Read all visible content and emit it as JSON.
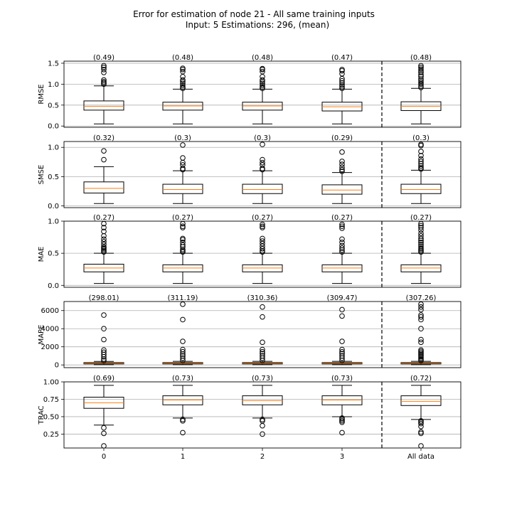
{
  "title": {
    "line1": "Error for estimation of node 21 - All same training inputs",
    "line2": "Input: 5   Estimations: 296,  (mean)"
  },
  "chart_data": {
    "type": "boxplot",
    "categories": [
      "0",
      "1",
      "2",
      "3",
      "All data"
    ],
    "separator_after_category": "3",
    "grid": "horizontal",
    "colors": {
      "box": "#000000",
      "median": "#ff7f0e",
      "grid": "#b0b0b0",
      "separator": "#000000"
    },
    "panels": [
      {
        "ylabel": "RMSE",
        "ylim": [
          -0.03,
          1.55
        ],
        "yticks": [
          0.0,
          0.5,
          1.0,
          1.5
        ],
        "yticklabels": [
          "0.0",
          "0.5",
          "1.0",
          "1.5"
        ],
        "mean_labels": [
          "(0.49)",
          "(0.48)",
          "(0.48)",
          "(0.47)",
          "(0.48)"
        ],
        "boxes": [
          {
            "whislo": 0.05,
            "q1": 0.38,
            "med": 0.47,
            "q3": 0.6,
            "whishi": 0.96,
            "fliers": [
              1.0,
              1.03,
              1.06,
              1.1,
              1.28,
              1.35,
              1.4,
              1.44
            ]
          },
          {
            "whislo": 0.05,
            "q1": 0.38,
            "med": 0.48,
            "q3": 0.57,
            "whishi": 0.88,
            "fliers": [
              0.9,
              0.93,
              0.97,
              1.02,
              1.06,
              1.1,
              1.18,
              1.3,
              1.35,
              1.38
            ]
          },
          {
            "whislo": 0.05,
            "q1": 0.38,
            "med": 0.48,
            "q3": 0.57,
            "whishi": 0.88,
            "fliers": [
              0.9,
              0.93,
              0.97,
              1.02,
              1.06,
              1.1,
              1.18,
              1.3,
              1.35,
              1.37
            ]
          },
          {
            "whislo": 0.05,
            "q1": 0.36,
            "med": 0.46,
            "q3": 0.57,
            "whishi": 0.88,
            "fliers": [
              0.9,
              0.94,
              0.98,
              1.03,
              1.08,
              1.13,
              1.25,
              1.32,
              1.35
            ]
          },
          {
            "whislo": 0.05,
            "q1": 0.37,
            "med": 0.47,
            "q3": 0.58,
            "whishi": 0.9,
            "fliers": [
              0.92,
              0.96,
              1.0,
              1.04,
              1.08,
              1.12,
              1.18,
              1.22,
              1.28,
              1.32,
              1.36,
              1.4,
              1.44
            ]
          }
        ]
      },
      {
        "ylabel": "SMSE",
        "ylim": [
          -0.03,
          1.1
        ],
        "yticks": [
          0.0,
          0.5,
          1.0
        ],
        "yticklabels": [
          "0.0",
          "0.5",
          "1.0"
        ],
        "mean_labels": [
          "(0.32)",
          "(0.3)",
          "(0.3)",
          "(0.29)",
          "(0.3)"
        ],
        "boxes": [
          {
            "whislo": 0.04,
            "q1": 0.22,
            "med": 0.3,
            "q3": 0.41,
            "whishi": 0.67,
            "fliers": [
              0.79,
              0.94
            ]
          },
          {
            "whislo": 0.04,
            "q1": 0.21,
            "med": 0.28,
            "q3": 0.37,
            "whishi": 0.6,
            "fliers": [
              0.62,
              0.64,
              0.7,
              0.74,
              0.82,
              1.04
            ]
          },
          {
            "whislo": 0.04,
            "q1": 0.21,
            "med": 0.28,
            "q3": 0.37,
            "whishi": 0.6,
            "fliers": [
              0.62,
              0.64,
              0.7,
              0.74,
              0.79,
              1.05
            ]
          },
          {
            "whislo": 0.04,
            "q1": 0.2,
            "med": 0.27,
            "q3": 0.36,
            "whishi": 0.57,
            "fliers": [
              0.59,
              0.62,
              0.66,
              0.71,
              0.76,
              0.92
            ]
          },
          {
            "whislo": 0.04,
            "q1": 0.21,
            "med": 0.28,
            "q3": 0.37,
            "whishi": 0.61,
            "fliers": [
              0.63,
              0.65,
              0.68,
              0.72,
              0.76,
              0.8,
              0.86,
              0.93,
              1.03,
              1.05
            ]
          }
        ]
      },
      {
        "ylabel": "MAE",
        "ylim": [
          -0.03,
          1.0
        ],
        "yticks": [
          0.0,
          0.5,
          1.0
        ],
        "yticklabels": [
          "0.0",
          "0.5",
          "1.0"
        ],
        "mean_labels": [
          "(0.27)",
          "(0.27)",
          "(0.27)",
          "(0.27)",
          "(0.27)"
        ],
        "boxes": [
          {
            "whislo": 0.03,
            "q1": 0.21,
            "med": 0.27,
            "q3": 0.33,
            "whishi": 0.5,
            "fliers": [
              0.52,
              0.54,
              0.56,
              0.58,
              0.6,
              0.64,
              0.68,
              0.72,
              0.77,
              0.84,
              0.9,
              0.96
            ]
          },
          {
            "whislo": 0.03,
            "q1": 0.21,
            "med": 0.27,
            "q3": 0.32,
            "whishi": 0.5,
            "fliers": [
              0.52,
              0.54,
              0.56,
              0.6,
              0.63,
              0.67,
              0.71,
              0.73,
              0.9,
              0.92,
              0.96
            ]
          },
          {
            "whislo": 0.03,
            "q1": 0.21,
            "med": 0.27,
            "q3": 0.32,
            "whishi": 0.5,
            "fliers": [
              0.52,
              0.54,
              0.57,
              0.61,
              0.65,
              0.69,
              0.73,
              0.9,
              0.92,
              0.95
            ]
          },
          {
            "whislo": 0.03,
            "q1": 0.21,
            "med": 0.27,
            "q3": 0.32,
            "whishi": 0.5,
            "fliers": [
              0.52,
              0.55,
              0.58,
              0.62,
              0.67,
              0.72,
              0.89,
              0.92,
              0.95
            ]
          },
          {
            "whislo": 0.03,
            "q1": 0.21,
            "med": 0.27,
            "q3": 0.32,
            "whishi": 0.5,
            "fliers": [
              0.52,
              0.54,
              0.56,
              0.58,
              0.61,
              0.64,
              0.67,
              0.7,
              0.73,
              0.77,
              0.81,
              0.86,
              0.9,
              0.93,
              0.96
            ]
          }
        ]
      },
      {
        "ylabel": "MAPE",
        "ylim": [
          -300,
          7000
        ],
        "yticks": [
          0,
          2000,
          4000,
          6000
        ],
        "yticklabels": [
          "0",
          "2000",
          "4000",
          "6000"
        ],
        "mean_labels": [
          "(298.01)",
          "(311.19)",
          "(310.36)",
          "(309.47)",
          "(307.26)"
        ],
        "boxes": [
          {
            "whislo": 20,
            "q1": 110,
            "med": 170,
            "q3": 260,
            "whishi": 390,
            "fliers": [
              480,
              650,
              900,
              1150,
              1400,
              1650,
              2800,
              4000,
              5500
            ]
          },
          {
            "whislo": 20,
            "q1": 110,
            "med": 170,
            "q3": 260,
            "whishi": 400,
            "fliers": [
              500,
              750,
              1000,
              1200,
              1450,
              1700,
              2600,
              5000,
              6700
            ]
          },
          {
            "whislo": 20,
            "q1": 110,
            "med": 170,
            "q3": 260,
            "whishi": 400,
            "fliers": [
              500,
              750,
              1000,
              1250,
              1450,
              1700,
              2500,
              5300,
              6400
            ]
          },
          {
            "whislo": 20,
            "q1": 110,
            "med": 170,
            "q3": 260,
            "whishi": 400,
            "fliers": [
              500,
              750,
              1000,
              1250,
              1450,
              1700,
              2600,
              5400,
              6100
            ]
          },
          {
            "whislo": 20,
            "q1": 110,
            "med": 170,
            "q3": 260,
            "whishi": 400,
            "fliers": [
              480,
              600,
              750,
              900,
              1050,
              1200,
              1350,
              1500,
              1650,
              2500,
              2800,
              4000,
              5000,
              5300,
              5500,
              6100,
              6400,
              6700
            ]
          }
        ]
      },
      {
        "ylabel": "TRAC",
        "ylim": [
          0.05,
          1.0
        ],
        "yticks": [
          0.25,
          0.5,
          0.75,
          1.0
        ],
        "yticklabels": [
          "0.25",
          "0.50",
          "0.75",
          "1.00"
        ],
        "mean_labels": [
          "(0.69)",
          "(0.73)",
          "(0.73)",
          "(0.73)",
          "(0.72)"
        ],
        "boxes": [
          {
            "whislo": 0.38,
            "q1": 0.62,
            "med": 0.7,
            "q3": 0.78,
            "whishi": 0.95,
            "fliers": [
              0.34,
              0.26,
              0.08
            ]
          },
          {
            "whislo": 0.48,
            "q1": 0.67,
            "med": 0.74,
            "q3": 0.8,
            "whishi": 0.95,
            "fliers": [
              0.46,
              0.44,
              0.27
            ]
          },
          {
            "whislo": 0.48,
            "q1": 0.67,
            "med": 0.73,
            "q3": 0.8,
            "whishi": 0.95,
            "fliers": [
              0.46,
              0.44,
              0.37,
              0.25
            ]
          },
          {
            "whislo": 0.5,
            "q1": 0.67,
            "med": 0.74,
            "q3": 0.8,
            "whishi": 0.95,
            "fliers": [
              0.48,
              0.46,
              0.44,
              0.42,
              0.27
            ]
          },
          {
            "whislo": 0.46,
            "q1": 0.66,
            "med": 0.72,
            "q3": 0.8,
            "whishi": 0.95,
            "fliers": [
              0.44,
              0.42,
              0.4,
              0.36,
              0.28,
              0.26,
              0.08
            ]
          }
        ]
      }
    ]
  }
}
